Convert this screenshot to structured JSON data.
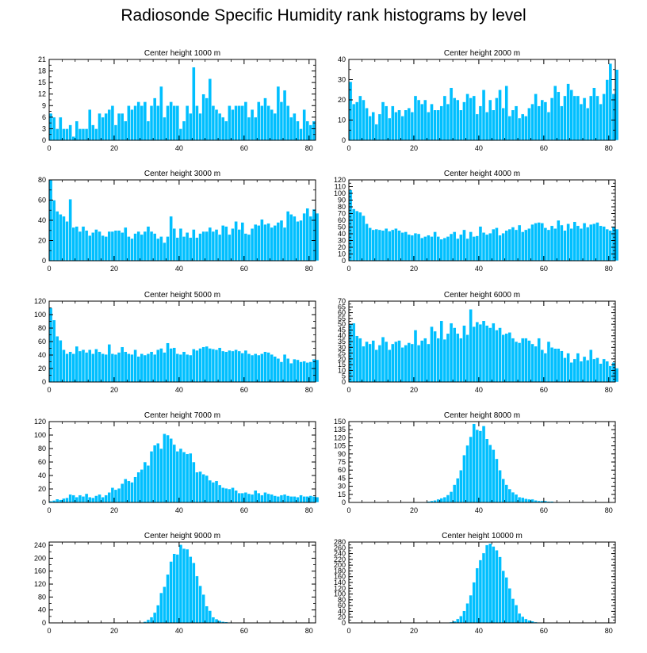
{
  "title": "Radiosonde Specific Humidity rank histograms by level",
  "colors": {
    "bar": "#00bfff",
    "bar_edge": "#ffffff",
    "axis": "#000000"
  },
  "chart_data": [
    {
      "type": "bar",
      "title": "Center height 1000 m",
      "xlim": [
        0,
        82
      ],
      "ylim": [
        0,
        21
      ],
      "xticks": [
        0,
        20,
        40,
        60,
        80
      ],
      "yticks": [
        0,
        3,
        6,
        9,
        12,
        15,
        18,
        21
      ],
      "values": [
        7,
        6,
        3,
        6,
        3,
        3,
        4,
        1,
        5,
        3,
        3,
        3,
        8,
        4,
        3,
        7,
        6,
        7,
        8,
        9,
        4,
        7,
        7,
        5,
        9,
        8,
        9,
        10,
        9,
        10,
        5,
        9,
        11,
        9,
        14,
        6,
        9,
        10,
        9,
        9,
        3,
        5,
        9,
        7,
        19,
        9,
        7,
        12,
        11,
        16,
        9,
        8,
        7,
        6,
        5,
        9,
        8,
        9,
        9,
        9,
        10,
        6,
        8,
        6,
        10,
        9,
        11,
        9,
        8,
        7,
        14,
        10,
        13,
        9,
        6,
        7,
        5,
        3,
        8,
        5,
        4,
        5
      ]
    },
    {
      "type": "bar",
      "title": "Center height 2000 m",
      "xlim": [
        0,
        82
      ],
      "ylim": [
        0,
        40
      ],
      "xticks": [
        0,
        20,
        40,
        60,
        80
      ],
      "yticks": [
        0,
        10,
        20,
        30,
        40
      ],
      "values": [
        29,
        18,
        19,
        22,
        20,
        16,
        12,
        14,
        8,
        13,
        19,
        17,
        11,
        17,
        14,
        15,
        12,
        15,
        16,
        14,
        22,
        20,
        18,
        20,
        14,
        18,
        15,
        15,
        17,
        22,
        18,
        26,
        21,
        20,
        15,
        19,
        23,
        21,
        22,
        13,
        17,
        25,
        14,
        20,
        15,
        21,
        25,
        16,
        27,
        12,
        15,
        17,
        11,
        13,
        12,
        16,
        18,
        23,
        17,
        20,
        19,
        14,
        21,
        27,
        24,
        17,
        22,
        28,
        25,
        22,
        22,
        18,
        21,
        16,
        22,
        26,
        22,
        18,
        23,
        30,
        38,
        23,
        35
      ]
    },
    {
      "type": "bar",
      "title": "Center height 3000 m",
      "xlim": [
        0,
        82
      ],
      "ylim": [
        0,
        80
      ],
      "xticks": [
        0,
        20,
        40,
        60,
        80
      ],
      "yticks": [
        0,
        20,
        40,
        60,
        80
      ],
      "values": [
        80,
        60,
        49,
        46,
        44,
        39,
        61,
        33,
        34,
        29,
        34,
        30,
        25,
        28,
        31,
        29,
        25,
        24,
        29,
        29,
        30,
        30,
        28,
        33,
        24,
        22,
        27,
        29,
        26,
        29,
        34,
        29,
        27,
        22,
        24,
        18,
        24,
        44,
        32,
        23,
        32,
        24,
        28,
        23,
        31,
        23,
        27,
        29,
        29,
        33,
        29,
        31,
        26,
        35,
        34,
        26,
        32,
        39,
        31,
        38,
        27,
        26,
        32,
        36,
        35,
        41,
        36,
        37,
        33,
        35,
        38,
        40,
        33,
        49,
        46,
        44,
        39,
        40,
        47,
        52,
        44,
        51,
        47
      ]
    },
    {
      "type": "bar",
      "title": "Center height 4000 m",
      "xlim": [
        0,
        82
      ],
      "ylim": [
        0,
        120
      ],
      "xticks": [
        0,
        20,
        40,
        60,
        80
      ],
      "yticks": [
        0,
        10,
        20,
        30,
        40,
        50,
        60,
        70,
        80,
        90,
        100,
        110,
        120
      ],
      "values": [
        105,
        77,
        74,
        72,
        67,
        55,
        49,
        46,
        47,
        46,
        45,
        48,
        44,
        46,
        48,
        45,
        42,
        43,
        39,
        38,
        41,
        40,
        34,
        36,
        38,
        36,
        43,
        36,
        32,
        34,
        36,
        40,
        43,
        33,
        39,
        46,
        33,
        43,
        36,
        37,
        51,
        42,
        39,
        41,
        47,
        49,
        38,
        41,
        45,
        47,
        50,
        46,
        53,
        43,
        46,
        48,
        54,
        56,
        57,
        56,
        49,
        46,
        52,
        48,
        60,
        53,
        45,
        55,
        48,
        58,
        52,
        48,
        56,
        50,
        54,
        55,
        57,
        52,
        51,
        47,
        45,
        51,
        47
      ]
    },
    {
      "type": "bar",
      "title": "Center height 5000 m",
      "xlim": [
        0,
        82
      ],
      "ylim": [
        0,
        120
      ],
      "xticks": [
        0,
        20,
        40,
        60,
        80
      ],
      "yticks": [
        0,
        20,
        40,
        60,
        80,
        100,
        120
      ],
      "values": [
        110,
        92,
        68,
        62,
        48,
        42,
        45,
        42,
        53,
        46,
        48,
        44,
        48,
        42,
        49,
        45,
        42,
        41,
        56,
        42,
        41,
        44,
        52,
        45,
        42,
        41,
        48,
        38,
        42,
        40,
        42,
        45,
        41,
        48,
        50,
        44,
        58,
        50,
        51,
        42,
        41,
        45,
        41,
        40,
        49,
        47,
        50,
        52,
        53,
        50,
        49,
        48,
        51,
        46,
        45,
        47,
        46,
        48,
        46,
        43,
        47,
        42,
        40,
        42,
        40,
        42,
        45,
        44,
        41,
        38,
        35,
        30,
        41,
        35,
        28,
        34,
        33,
        30,
        31,
        29,
        30,
        34,
        33
      ]
    },
    {
      "type": "bar",
      "title": "Center height 6000 m",
      "xlim": [
        0,
        82
      ],
      "ylim": [
        0,
        70
      ],
      "xticks": [
        0,
        20,
        40,
        60,
        80
      ],
      "yticks": [
        0,
        5,
        10,
        15,
        20,
        25,
        30,
        35,
        40,
        45,
        50,
        55,
        60,
        65,
        70
      ],
      "values": [
        50,
        51,
        40,
        38,
        31,
        35,
        33,
        36,
        28,
        32,
        39,
        35,
        28,
        33,
        35,
        36,
        30,
        32,
        34,
        33,
        45,
        32,
        36,
        38,
        33,
        48,
        44,
        38,
        53,
        37,
        42,
        51,
        47,
        42,
        38,
        49,
        41,
        63,
        48,
        52,
        50,
        53,
        49,
        47,
        51,
        45,
        47,
        41,
        42,
        43,
        38,
        35,
        34,
        38,
        38,
        36,
        33,
        31,
        38,
        28,
        25,
        35,
        30,
        29,
        29,
        27,
        21,
        25,
        17,
        20,
        25,
        18,
        22,
        19,
        28,
        20,
        21,
        16,
        20,
        18,
        14,
        17,
        12
      ]
    },
    {
      "type": "bar",
      "title": "Center height 7000 m",
      "xlim": [
        0,
        82
      ],
      "ylim": [
        0,
        120
      ],
      "xticks": [
        0,
        20,
        40,
        60,
        80
      ],
      "yticks": [
        0,
        20,
        40,
        60,
        80,
        100,
        120
      ],
      "values": [
        2,
        3,
        5,
        4,
        6,
        7,
        12,
        11,
        8,
        11,
        9,
        13,
        8,
        7,
        10,
        12,
        8,
        11,
        15,
        22,
        19,
        21,
        28,
        35,
        32,
        30,
        38,
        45,
        49,
        60,
        55,
        76,
        85,
        88,
        80,
        102,
        100,
        95,
        86,
        76,
        80,
        75,
        72,
        73,
        60,
        45,
        46,
        42,
        40,
        33,
        30,
        32,
        26,
        22,
        21,
        20,
        22,
        18,
        14,
        14,
        15,
        13,
        12,
        18,
        14,
        11,
        15,
        13,
        12,
        10,
        9,
        11,
        12,
        10,
        9,
        9,
        8,
        11,
        9,
        9,
        10,
        9,
        8
      ]
    },
    {
      "type": "bar",
      "title": "Center height 8000 m",
      "xlim": [
        0,
        82
      ],
      "ylim": [
        0,
        150
      ],
      "xticks": [
        0,
        20,
        40,
        60,
        80
      ],
      "yticks": [
        0,
        15,
        30,
        45,
        60,
        75,
        90,
        105,
        120,
        135,
        150
      ],
      "values": [
        0,
        0,
        0,
        0,
        0,
        0,
        0,
        0,
        0,
        0,
        0,
        0,
        0,
        0,
        0,
        0,
        0,
        0,
        0,
        0,
        1,
        0,
        1,
        0,
        2,
        3,
        4,
        6,
        8,
        10,
        14,
        20,
        33,
        45,
        60,
        88,
        106,
        122,
        146,
        135,
        133,
        142,
        118,
        107,
        98,
        81,
        60,
        44,
        33,
        25,
        19,
        15,
        10,
        9,
        7,
        6,
        6,
        4,
        3,
        3,
        3,
        2,
        2,
        1,
        1,
        1,
        1,
        1,
        1,
        1,
        1,
        1,
        1,
        1,
        1,
        1,
        1,
        0,
        0,
        0,
        0,
        0,
        0
      ]
    },
    {
      "type": "bar",
      "title": "Center height 9000 m",
      "xlim": [
        0,
        82
      ],
      "ylim": [
        0,
        250
      ],
      "xticks": [
        0,
        20,
        40,
        60,
        80
      ],
      "yticks": [
        0,
        40,
        80,
        120,
        160,
        200,
        240
      ],
      "values": [
        0,
        0,
        0,
        0,
        0,
        0,
        0,
        0,
        0,
        0,
        0,
        0,
        0,
        0,
        0,
        0,
        0,
        0,
        0,
        0,
        0,
        0,
        0,
        0,
        0,
        0,
        0,
        1,
        1,
        4,
        10,
        18,
        32,
        55,
        93,
        112,
        150,
        190,
        214,
        212,
        242,
        230,
        228,
        205,
        186,
        145,
        115,
        88,
        52,
        38,
        18,
        12,
        7,
        4,
        3,
        2,
        1,
        1,
        1,
        0,
        0,
        0,
        0,
        0,
        0,
        0,
        0,
        0,
        0,
        0,
        0,
        0,
        0,
        0,
        0,
        0,
        0,
        0,
        0,
        0,
        0,
        0,
        0
      ]
    },
    {
      "type": "bar",
      "title": "Center height 10000 m",
      "xlim": [
        0,
        82
      ],
      "ylim": [
        0,
        280
      ],
      "xticks": [
        0,
        20,
        40,
        60,
        80
      ],
      "yticks": [
        0,
        20,
        40,
        60,
        80,
        100,
        120,
        140,
        160,
        180,
        200,
        220,
        240,
        260,
        280
      ],
      "values": [
        0,
        0,
        0,
        0,
        0,
        0,
        0,
        0,
        0,
        0,
        0,
        0,
        0,
        0,
        0,
        0,
        0,
        0,
        0,
        0,
        0,
        0,
        0,
        0,
        0,
        0,
        0,
        0,
        0,
        0,
        1,
        3,
        6,
        14,
        24,
        42,
        68,
        96,
        141,
        190,
        218,
        242,
        270,
        275,
        265,
        252,
        229,
        181,
        158,
        120,
        84,
        62,
        33,
        22,
        14,
        9,
        6,
        3,
        2,
        1,
        1,
        0,
        0,
        0,
        0,
        0,
        0,
        0,
        0,
        0,
        0,
        0,
        0,
        0,
        0,
        0,
        0,
        0,
        0,
        0,
        0,
        0,
        0
      ]
    }
  ]
}
